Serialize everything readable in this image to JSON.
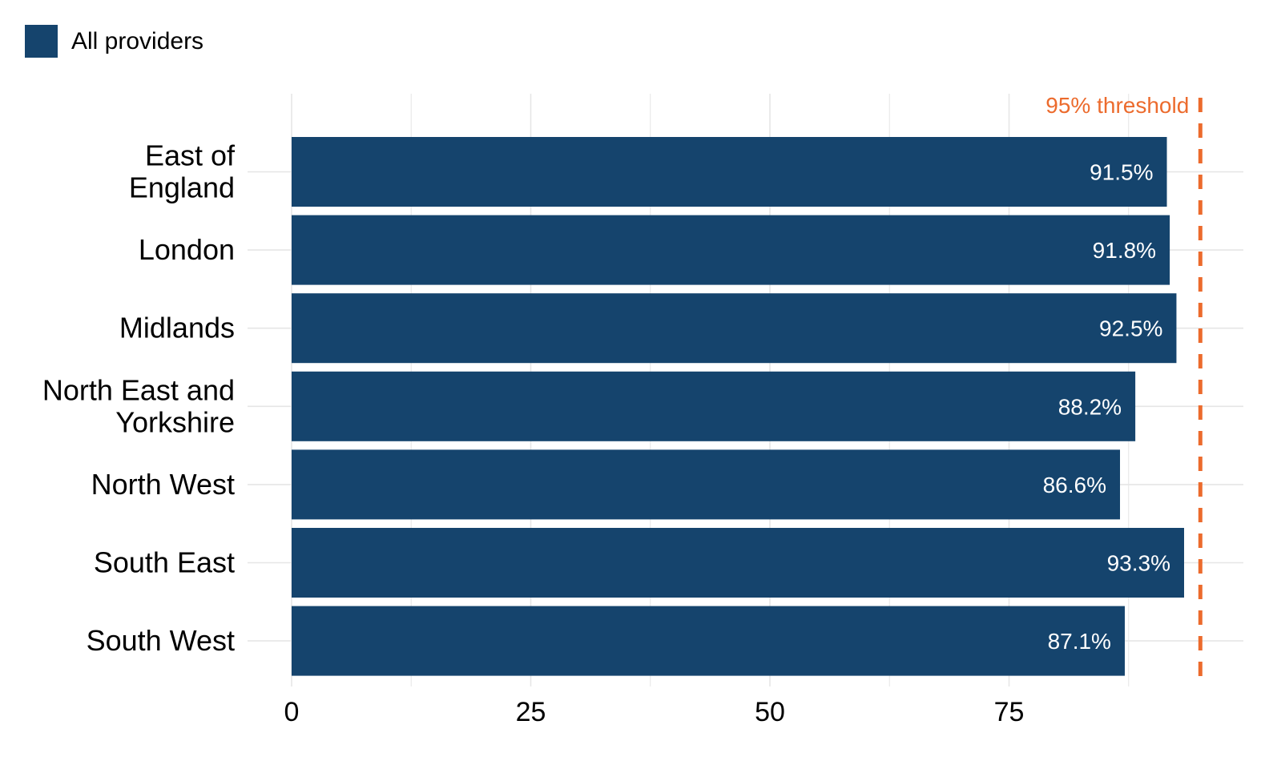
{
  "legend": {
    "label": "All providers"
  },
  "colors": {
    "bar": "#15446d",
    "threshold": "#ec6b2d",
    "grid": "#e6e6e6"
  },
  "chart_data": {
    "type": "bar",
    "orientation": "horizontal",
    "categories": [
      [
        "East of",
        "England"
      ],
      [
        "London"
      ],
      [
        "Midlands"
      ],
      [
        "North East and",
        "Yorkshire"
      ],
      [
        "North West"
      ],
      [
        "South East"
      ],
      [
        "South West"
      ]
    ],
    "series": [
      {
        "name": "All providers",
        "values": [
          91.5,
          91.8,
          92.5,
          88.2,
          86.6,
          93.3,
          87.1
        ],
        "labels": [
          "91.5%",
          "91.8%",
          "92.5%",
          "88.2%",
          "86.6%",
          "93.3%",
          "87.1%"
        ]
      }
    ],
    "xticks": [
      0,
      25,
      50,
      75
    ],
    "xtick_labels": [
      "0",
      "25",
      "50",
      "75"
    ],
    "xlim": [
      0,
      100
    ],
    "threshold": {
      "value": 95,
      "label": "95% threshold"
    },
    "grid": true,
    "legend_position": "top-left",
    "title": "",
    "xlabel": "",
    "ylabel": ""
  }
}
